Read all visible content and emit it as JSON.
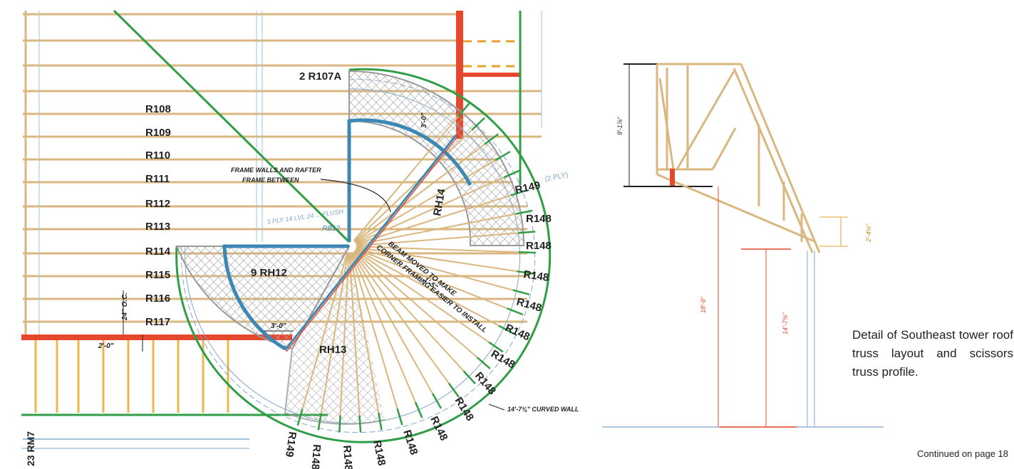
{
  "plan": {
    "rafter_labels": [
      "R108",
      "R109",
      "R110",
      "R111",
      "R112",
      "R113",
      "R114",
      "R115",
      "R116",
      "R117"
    ],
    "top_label": "R107A",
    "top_label_count": "2",
    "rh12": "9 RH12",
    "rh13": "RH13",
    "rh14": "RH14",
    "rb12": "RB12",
    "rb12_note": "3 PLY  14 LVL 24 ... FLUSH",
    "rm7": "23 RM7",
    "radial_right": [
      "R149",
      "R148",
      "R148",
      "R148",
      "R148",
      "R148",
      "R148"
    ],
    "radial_bottom": [
      "R148",
      "R148",
      "R148",
      "R148",
      "R148",
      "R148",
      "R148"
    ],
    "radial_end": "R149",
    "ply_note": "(2 PLY)",
    "note_frame": [
      "FRAME WALLS AND RAFTER",
      "FRAME BETWEEN"
    ],
    "note_beam": [
      "BEAM MOVED TO MAKE",
      "CORNER FRAMING EASIER TO INSTALL"
    ],
    "note_curved": "14'-7⅜\" CURVED WALL",
    "dim_oc": "24\" O.C.",
    "dim_2ft": "2'-0\"",
    "dim_3ft": "3'-0\"",
    "dim_3ft_b": "3'-0\"",
    "dim_beam": "1'-5\""
  },
  "profile": {
    "dim_height": "9'-1⅞\"",
    "dim_wall": "18'-9\"",
    "dim_inner": "14'-7⅜\"",
    "dim_heel": "2'-4⅛\""
  },
  "caption": "Detail of Southeast tower roof truss layout and scissors truss profile.",
  "continued": "Continued on page 18",
  "colors": {
    "wood": "#d9b77e",
    "green": "#2f9e44",
    "red": "#e5482c",
    "blue": "#3d87b5",
    "hatch": "#9a9a9a",
    "dimblue": "#7fa7cf"
  }
}
